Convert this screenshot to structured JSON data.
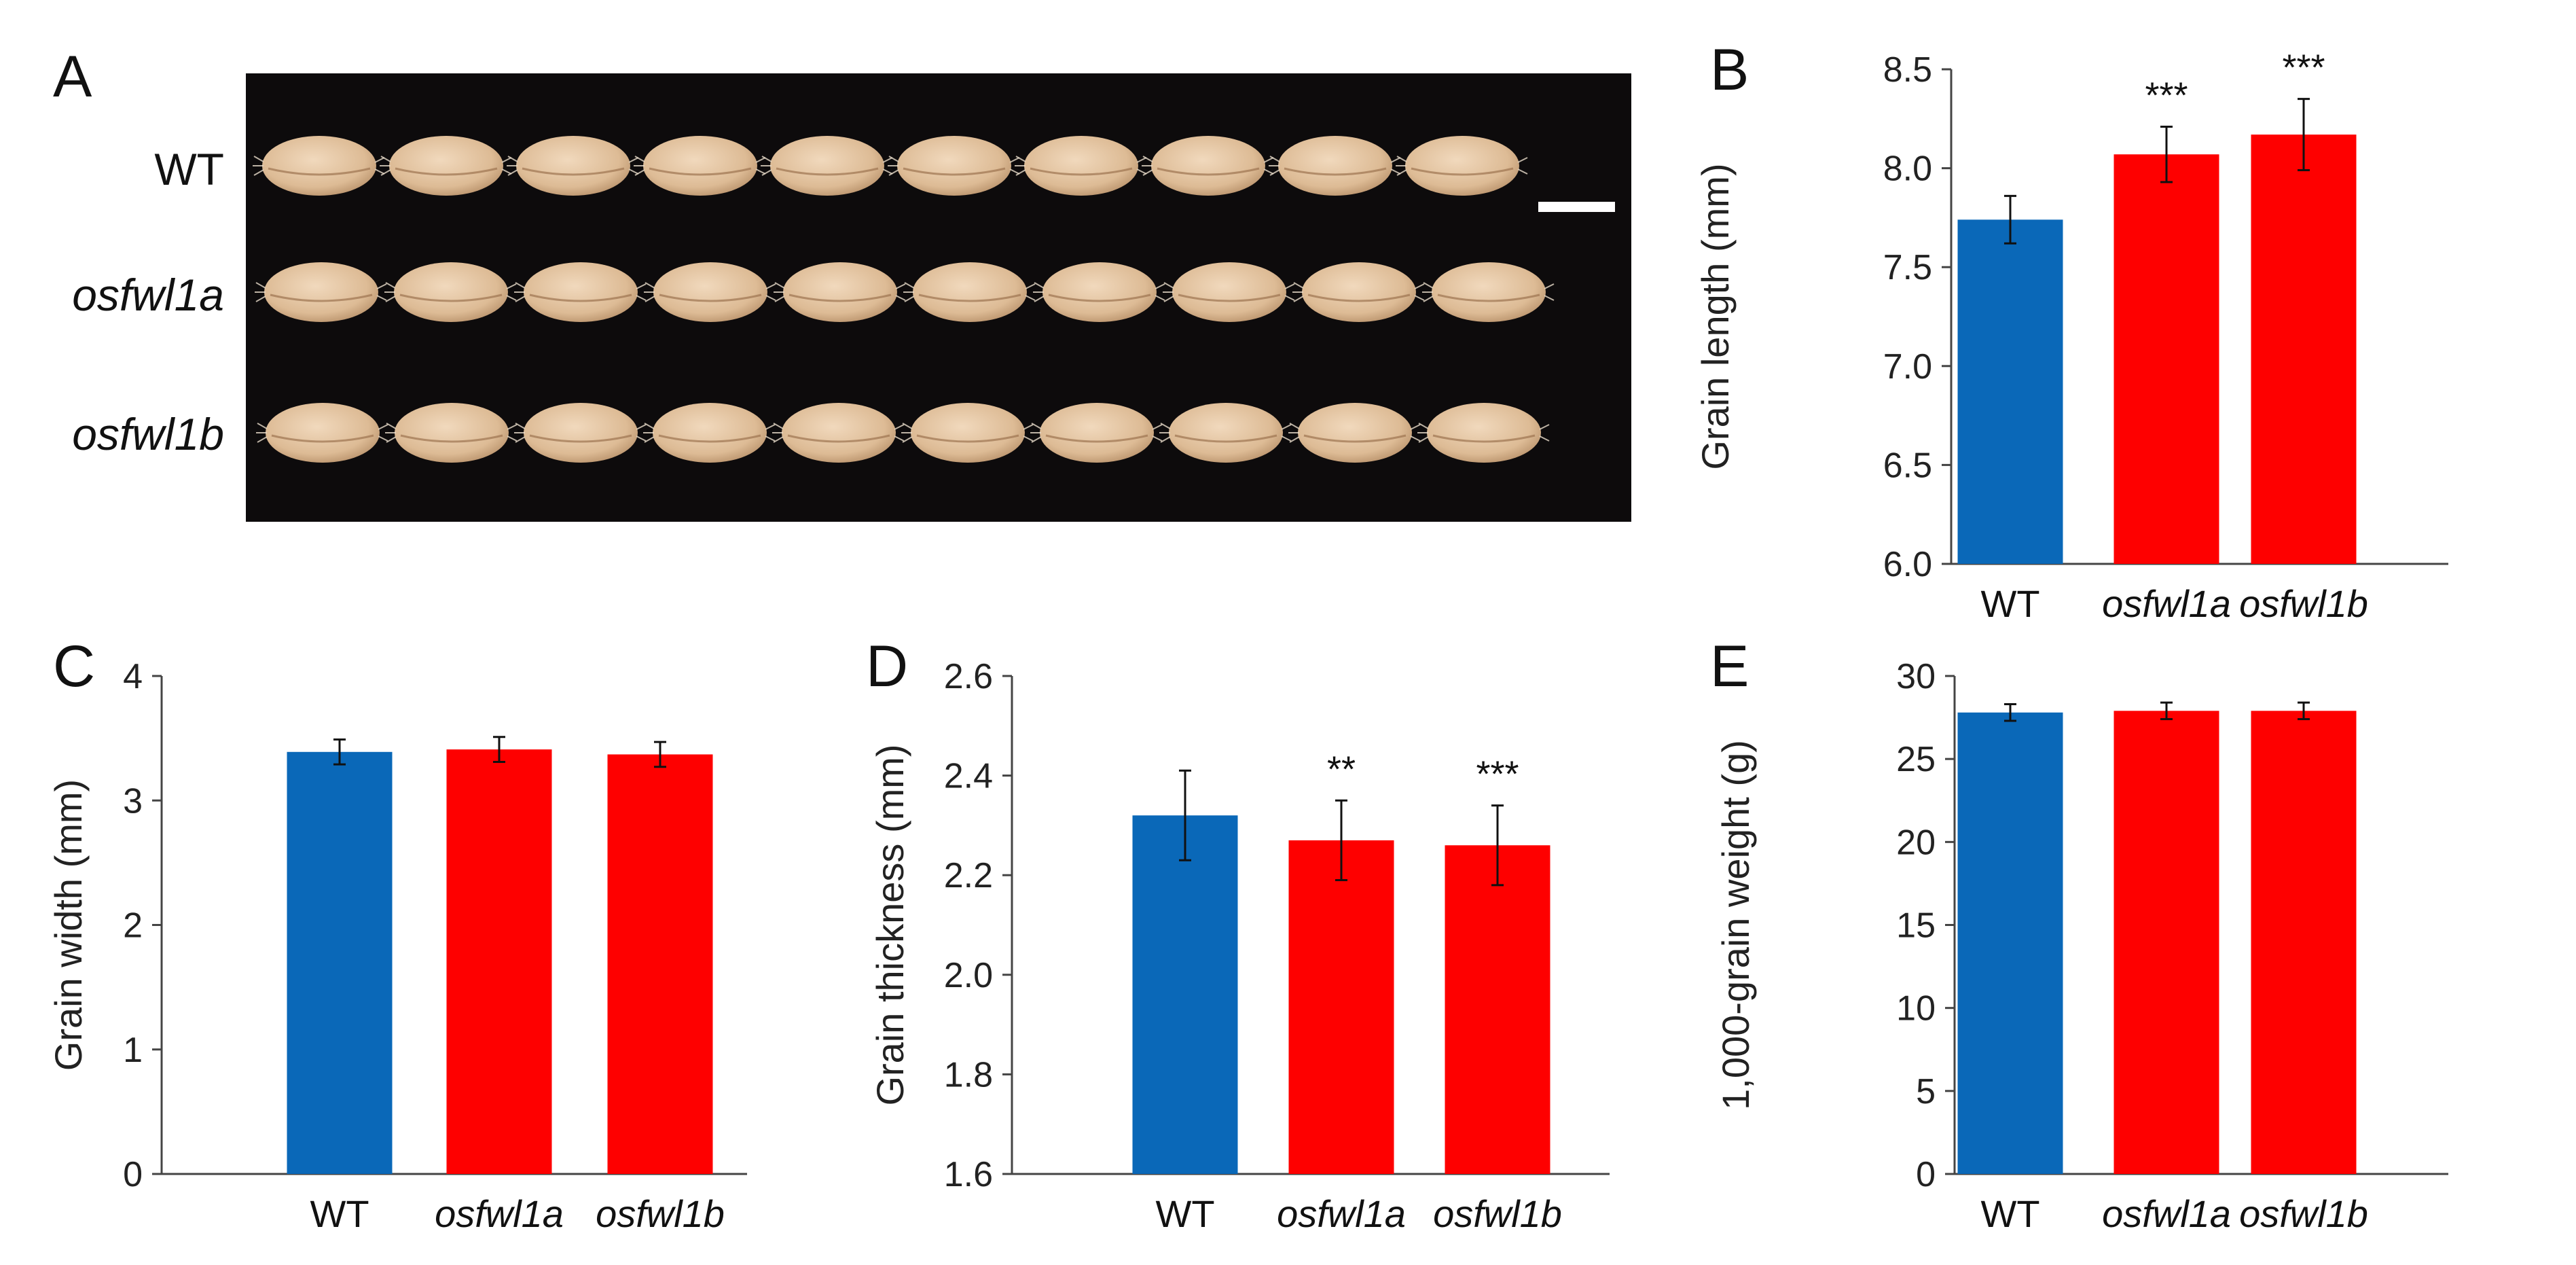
{
  "photo_panel": {
    "letter": "A",
    "rows": [
      {
        "label": "WT",
        "italic": false,
        "grains": 10
      },
      {
        "label": "osfwl1a",
        "italic": true,
        "grains": 10
      },
      {
        "label": "osfwl1b",
        "italic": true,
        "grains": 10
      }
    ],
    "colors": {
      "background": "#0d0b0c",
      "grain": "#ddbb95",
      "grain_shadow": "#b8916a",
      "scale_bar": "#ffffff"
    }
  },
  "colors": {
    "wt": "#0a68b8",
    "mutant": "#fe0000",
    "axis": "#444444"
  },
  "chart_data": [
    {
      "panel": "B",
      "type": "bar",
      "categories": [
        "WT",
        "osfwl1a",
        "osfwl1b"
      ],
      "values": [
        7.74,
        8.07,
        8.17
      ],
      "errors": [
        0.12,
        0.14,
        0.18
      ],
      "significance": [
        "",
        "***",
        "***"
      ],
      "ylabel": "Grain length (mm)",
      "ylim": [
        6.0,
        8.5
      ],
      "yticks": [
        "6.0",
        "6.5",
        "7.0",
        "7.5",
        "8.0",
        "8.5"
      ]
    },
    {
      "panel": "C",
      "type": "bar",
      "categories": [
        "WT",
        "osfwl1a",
        "osfwl1b"
      ],
      "values": [
        3.39,
        3.41,
        3.37
      ],
      "errors": [
        0.1,
        0.1,
        0.1
      ],
      "significance": [
        "",
        "",
        ""
      ],
      "ylabel": "Grain width (mm)",
      "ylim": [
        0,
        4
      ],
      "yticks": [
        "0",
        "1",
        "2",
        "3",
        "4"
      ]
    },
    {
      "panel": "D",
      "type": "bar",
      "categories": [
        "WT",
        "osfwl1a",
        "osfwl1b"
      ],
      "values": [
        2.32,
        2.27,
        2.26
      ],
      "errors": [
        0.09,
        0.08,
        0.08
      ],
      "significance": [
        "",
        "**",
        "***"
      ],
      "ylabel": "Grain thickness (mm)",
      "ylim": [
        1.6,
        2.6
      ],
      "yticks": [
        "1.6",
        "1.8",
        "2.0",
        "2.2",
        "2.4",
        "2.6"
      ]
    },
    {
      "panel": "E",
      "type": "bar",
      "categories": [
        "WT",
        "osfwl1a",
        "osfwl1b"
      ],
      "values": [
        27.8,
        27.9,
        27.9
      ],
      "errors": [
        0.5,
        0.5,
        0.5
      ],
      "significance": [
        "",
        "",
        ""
      ],
      "ylabel": "1,000-grain weight (g)",
      "ylim": [
        0,
        30
      ],
      "yticks": [
        "0",
        "5",
        "10",
        "15",
        "20",
        "25",
        "30"
      ]
    }
  ]
}
